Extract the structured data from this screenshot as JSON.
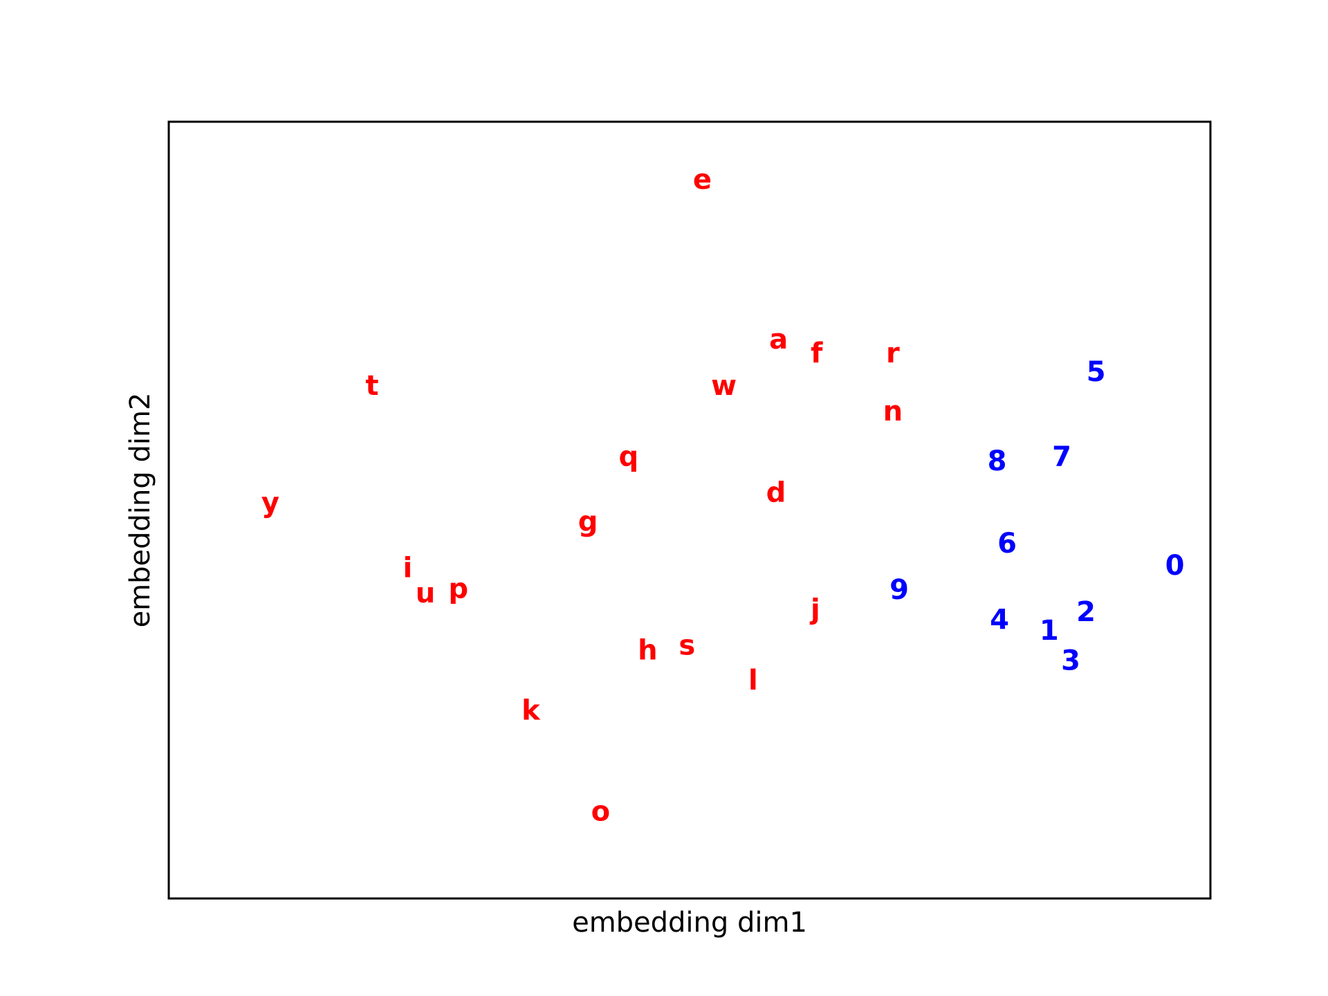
{
  "chart_data": {
    "type": "scatter",
    "title": "",
    "xlabel": "embedding dim1",
    "ylabel": "embedding dim2",
    "xlim": [
      -4.2,
      4.0
    ],
    "ylim": [
      -3.5,
      3.2
    ],
    "grid": false,
    "x_ticks_visible": false,
    "y_ticks_visible": false,
    "point_style": "text-label",
    "colors": {
      "letter": "#ff0000",
      "digit": "#0000ff"
    },
    "series": [
      {
        "color_key": "letter",
        "points": [
          {
            "label": "e",
            "x": 0.0,
            "y": 2.7
          },
          {
            "label": "a",
            "x": 0.6,
            "y": 1.32
          },
          {
            "label": "f",
            "x": 0.9,
            "y": 1.2
          },
          {
            "label": "r",
            "x": 1.5,
            "y": 1.2
          },
          {
            "label": "w",
            "x": 0.17,
            "y": 0.92
          },
          {
            "label": "n",
            "x": 1.5,
            "y": 0.7
          },
          {
            "label": "t",
            "x": -2.6,
            "y": 0.92
          },
          {
            "label": "q",
            "x": -0.58,
            "y": 0.31
          },
          {
            "label": "d",
            "x": 0.58,
            "y": 0.0
          },
          {
            "label": "y",
            "x": -3.4,
            "y": -0.09
          },
          {
            "label": "g",
            "x": -0.9,
            "y": -0.25
          },
          {
            "label": "i",
            "x": -2.32,
            "y": -0.65
          },
          {
            "label": "u",
            "x": -2.18,
            "y": -0.87
          },
          {
            "label": "p",
            "x": -1.92,
            "y": -0.83
          },
          {
            "label": "j",
            "x": 0.89,
            "y": -1.01
          },
          {
            "label": "h",
            "x": -0.43,
            "y": -1.36
          },
          {
            "label": "s",
            "x": -0.12,
            "y": -1.32
          },
          {
            "label": "l",
            "x": 0.4,
            "y": -1.62
          },
          {
            "label": "k",
            "x": -1.35,
            "y": -1.88
          },
          {
            "label": "o",
            "x": -0.8,
            "y": -2.75
          }
        ]
      },
      {
        "color_key": "digit",
        "points": [
          {
            "label": "5",
            "x": 3.1,
            "y": 1.04
          },
          {
            "label": "8",
            "x": 2.32,
            "y": 0.27
          },
          {
            "label": "7",
            "x": 2.83,
            "y": 0.31
          },
          {
            "label": "6",
            "x": 2.4,
            "y": -0.44
          },
          {
            "label": "0",
            "x": 3.72,
            "y": -0.63
          },
          {
            "label": "9",
            "x": 1.55,
            "y": -0.84
          },
          {
            "label": "2",
            "x": 3.02,
            "y": -1.03
          },
          {
            "label": "4",
            "x": 2.34,
            "y": -1.1
          },
          {
            "label": "1",
            "x": 2.73,
            "y": -1.19
          },
          {
            "label": "3",
            "x": 2.9,
            "y": -1.45
          }
        ]
      }
    ]
  }
}
